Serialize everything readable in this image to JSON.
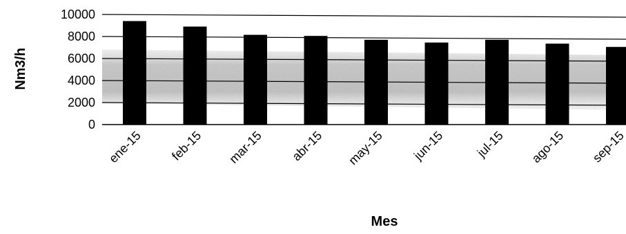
{
  "chart_data": {
    "type": "bar",
    "categories": [
      "ene-15",
      "feb-15",
      "mar-15",
      "abr-15",
      "may-15",
      "jun-15",
      "jul-15",
      "ago-15",
      "sep-15"
    ],
    "values": [
      9400,
      8900,
      8150,
      8050,
      7700,
      7450,
      7700,
      7350,
      7050
    ],
    "xlabel": "Mes",
    "ylabel": "Nm3/h",
    "ylim": [
      0,
      10000
    ],
    "yticks": [
      0,
      2000,
      4000,
      6000,
      8000,
      10000
    ],
    "grid": true,
    "legend": "none",
    "colors": {
      "bar": "#000000",
      "grid": "#000000",
      "band": "#b5b5b5"
    }
  }
}
